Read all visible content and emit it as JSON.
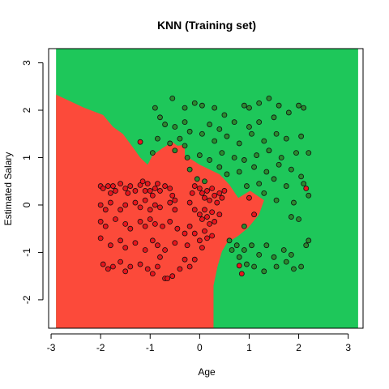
{
  "chart_data": {
    "type": "scatter",
    "title": "KNN (Training set)",
    "xlabel": "Age",
    "ylabel": "Estimated Salary",
    "xlim": [
      -3.05,
      3.3
    ],
    "ylim": [
      -2.6,
      3.3
    ],
    "x_ticks": [
      -3,
      -2,
      -1,
      0,
      1,
      2,
      3
    ],
    "y_ticks": [
      -2,
      -1,
      0,
      1,
      2,
      3
    ],
    "grid": false,
    "background_region": {
      "x_range": [
        -2.9,
        3.2
      ],
      "y_range": [
        -2.6,
        3.3
      ],
      "class_1_color": "#1ec75a",
      "class_0_color": "#fc4a3a",
      "class_0_region_polygon": [
        [
          -2.9,
          2.33
        ],
        [
          -2.35,
          2.06
        ],
        [
          -1.95,
          1.9
        ],
        [
          -1.75,
          1.65
        ],
        [
          -1.55,
          1.5
        ],
        [
          -1.35,
          1.22
        ],
        [
          -1.2,
          1.0
        ],
        [
          -1.05,
          0.85
        ],
        [
          -0.95,
          1.05
        ],
        [
          -0.75,
          1.2
        ],
        [
          -0.55,
          1.33
        ],
        [
          -0.45,
          1.25
        ],
        [
          -0.3,
          1.27
        ],
        [
          -0.3,
          1.05
        ],
        [
          -0.15,
          0.95
        ],
        [
          0.0,
          0.85
        ],
        [
          0.2,
          0.75
        ],
        [
          0.4,
          0.65
        ],
        [
          0.6,
          0.43
        ],
        [
          0.78,
          0.15
        ],
        [
          1.02,
          0.3
        ],
        [
          1.3,
          0.1
        ],
        [
          1.2,
          -0.2
        ],
        [
          0.98,
          -0.48
        ],
        [
          0.78,
          -0.65
        ],
        [
          0.55,
          -0.8
        ],
        [
          0.45,
          -0.98
        ],
        [
          0.36,
          -1.3
        ],
        [
          0.28,
          -1.7
        ],
        [
          0.28,
          -2.6
        ],
        [
          -2.9,
          -2.6
        ]
      ]
    },
    "series": [
      {
        "color": "#e8141d",
        "points": [
          [
            -1.2,
            1.33
          ],
          [
            -2.0,
            0.4
          ],
          [
            -1.95,
            0.35
          ],
          [
            -1.85,
            0.4
          ],
          [
            -1.8,
            0.25
          ],
          [
            -1.75,
            0.4
          ],
          [
            -1.7,
            0.3
          ],
          [
            -1.6,
            0.45
          ],
          [
            -1.5,
            0.35
          ],
          [
            -1.45,
            0.25
          ],
          [
            -1.4,
            0.4
          ],
          [
            -1.3,
            0.3
          ],
          [
            -1.2,
            0.42
          ],
          [
            -1.15,
            0.5
          ],
          [
            -1.1,
            0.3
          ],
          [
            -1.05,
            0.45
          ],
          [
            -1.0,
            0.3
          ],
          [
            -0.95,
            0.2
          ],
          [
            -0.9,
            0.35
          ],
          [
            -0.85,
            0.45
          ],
          [
            -0.8,
            0.3
          ],
          [
            -0.7,
            0.4
          ],
          [
            -0.6,
            0.35
          ],
          [
            -0.55,
            0.2
          ],
          [
            -0.5,
            0.1
          ],
          [
            -2.0,
            0.0
          ],
          [
            -1.9,
            -0.1
          ],
          [
            -1.8,
            0.05
          ],
          [
            -1.6,
            -0.1
          ],
          [
            -1.5,
            0.0
          ],
          [
            -1.3,
            0.05
          ],
          [
            -1.2,
            -0.05
          ],
          [
            -1.1,
            0.1
          ],
          [
            -1.0,
            -0.1
          ],
          [
            -0.9,
            0.0
          ],
          [
            -0.8,
            -0.05
          ],
          [
            -0.6,
            0.05
          ],
          [
            -0.5,
            -0.1
          ],
          [
            -2.0,
            -0.35
          ],
          [
            -1.9,
            -0.45
          ],
          [
            -1.7,
            -0.3
          ],
          [
            -1.5,
            -0.4
          ],
          [
            -1.4,
            -0.5
          ],
          [
            -1.2,
            -0.35
          ],
          [
            -1.1,
            -0.45
          ],
          [
            -1.0,
            -0.3
          ],
          [
            -0.9,
            -0.4
          ],
          [
            -0.75,
            -0.45
          ],
          [
            -0.6,
            -0.35
          ],
          [
            -0.45,
            -0.5
          ],
          [
            -2.0,
            -0.7
          ],
          [
            -1.8,
            -0.85
          ],
          [
            -1.6,
            -0.75
          ],
          [
            -1.5,
            -0.9
          ],
          [
            -1.3,
            -0.8
          ],
          [
            -1.1,
            -0.95
          ],
          [
            -0.95,
            -0.75
          ],
          [
            -0.85,
            -0.85
          ],
          [
            -0.7,
            -0.95
          ],
          [
            -0.5,
            -0.8
          ],
          [
            -1.95,
            -1.25
          ],
          [
            -1.85,
            -1.35
          ],
          [
            -1.75,
            -1.3
          ],
          [
            -1.6,
            -1.2
          ],
          [
            -1.5,
            -1.4
          ],
          [
            -1.4,
            -1.3
          ],
          [
            -1.2,
            -1.25
          ],
          [
            -1.05,
            -1.35
          ],
          [
            -0.95,
            -1.45
          ],
          [
            -0.85,
            -1.3
          ],
          [
            -0.8,
            -1.1
          ],
          [
            -0.7,
            -1.55
          ],
          [
            -0.65,
            -1.55
          ],
          [
            -0.55,
            -1.5
          ],
          [
            -0.4,
            -1.35
          ],
          [
            -0.3,
            -1.15
          ],
          [
            -0.2,
            -1.3
          ],
          [
            -0.1,
            -1.15
          ],
          [
            -0.1,
            0.4
          ],
          [
            0.0,
            0.35
          ],
          [
            0.05,
            0.25
          ],
          [
            0.1,
            0.15
          ],
          [
            0.15,
            0.3
          ],
          [
            0.2,
            0.1
          ],
          [
            0.25,
            0.35
          ],
          [
            0.3,
            0.2
          ],
          [
            0.35,
            0.05
          ],
          [
            0.4,
            0.25
          ],
          [
            0.45,
            0.15
          ],
          [
            0.5,
            0.3
          ],
          [
            -0.2,
            0.05
          ],
          [
            -0.1,
            -0.1
          ],
          [
            0.0,
            -0.2
          ],
          [
            0.05,
            -0.3
          ],
          [
            0.1,
            -0.1
          ],
          [
            0.15,
            -0.25
          ],
          [
            0.2,
            -0.4
          ],
          [
            0.25,
            -0.15
          ],
          [
            0.3,
            -0.35
          ],
          [
            0.4,
            -0.2
          ],
          [
            -0.2,
            -0.45
          ],
          [
            -0.1,
            -0.6
          ],
          [
            0.0,
            -0.75
          ],
          [
            0.1,
            -0.55
          ],
          [
            0.15,
            -0.7
          ],
          [
            0.25,
            -0.65
          ],
          [
            -0.3,
            -0.6
          ],
          [
            -0.25,
            -0.85
          ],
          [
            0.05,
            -0.9
          ],
          [
            -0.15,
            0.25
          ],
          [
            1.0,
            0.15
          ],
          [
            2.15,
            0.35
          ],
          [
            1.1,
            -0.2
          ],
          [
            0.85,
            -1.45
          ],
          [
            0.8,
            -1.28
          ],
          [
            1.4,
            1.15
          ]
        ]
      },
      {
        "color": "#2a8a2e",
        "points": [
          [
            -0.55,
            2.25
          ],
          [
            -0.3,
            2.05
          ],
          [
            0.05,
            2.1
          ],
          [
            -0.1,
            2.15
          ],
          [
            0.3,
            2.05
          ],
          [
            0.5,
            1.9
          ],
          [
            0.9,
            2.1
          ],
          [
            1.0,
            2.05
          ],
          [
            1.2,
            2.15
          ],
          [
            1.4,
            2.25
          ],
          [
            1.6,
            2.1
          ],
          [
            2.0,
            2.1
          ],
          [
            2.1,
            2.05
          ],
          [
            -0.9,
            2.05
          ],
          [
            -0.8,
            1.85
          ],
          [
            -0.7,
            1.7
          ],
          [
            -0.5,
            1.65
          ],
          [
            -0.3,
            1.75
          ],
          [
            0.2,
            1.7
          ],
          [
            0.4,
            1.6
          ],
          [
            0.7,
            1.75
          ],
          [
            1.0,
            1.65
          ],
          [
            1.2,
            1.75
          ],
          [
            1.5,
            1.85
          ],
          [
            1.8,
            1.95
          ],
          [
            -0.85,
            1.4
          ],
          [
            -0.6,
            1.3
          ],
          [
            -0.4,
            1.4
          ],
          [
            -0.2,
            1.55
          ],
          [
            0.05,
            1.5
          ],
          [
            0.3,
            1.35
          ],
          [
            0.55,
            1.45
          ],
          [
            0.8,
            1.3
          ],
          [
            1.05,
            1.5
          ],
          [
            1.3,
            1.35
          ],
          [
            1.55,
            1.5
          ],
          [
            1.75,
            1.4
          ],
          [
            2.05,
            1.45
          ],
          [
            -0.95,
            1.1
          ],
          [
            -0.5,
            1.15
          ],
          [
            -0.25,
            1.0
          ],
          [
            0.0,
            1.05
          ],
          [
            0.2,
            0.95
          ],
          [
            0.45,
            1.1
          ],
          [
            0.7,
            1.0
          ],
          [
            0.9,
            0.95
          ],
          [
            1.15,
            1.05
          ],
          [
            1.4,
            1.15
          ],
          [
            1.65,
            1.0
          ],
          [
            1.95,
            1.1
          ],
          [
            2.2,
            1.1
          ],
          [
            -0.2,
            0.75
          ],
          [
            0.4,
            0.8
          ],
          [
            0.55,
            0.65
          ],
          [
            0.8,
            0.7
          ],
          [
            1.1,
            0.8
          ],
          [
            1.35,
            0.7
          ],
          [
            1.6,
            0.85
          ],
          [
            1.85,
            0.75
          ],
          [
            2.05,
            0.6
          ],
          [
            0.95,
            0.4
          ],
          [
            1.2,
            0.45
          ],
          [
            1.5,
            0.55
          ],
          [
            1.75,
            0.4
          ],
          [
            2.1,
            0.45
          ],
          [
            1.3,
            0.25
          ],
          [
            1.55,
            0.1
          ],
          [
            1.9,
            0.05
          ],
          [
            2.2,
            0.2
          ],
          [
            1.85,
            -0.25
          ],
          [
            2.0,
            -0.3
          ],
          [
            2.2,
            -0.75
          ],
          [
            2.15,
            -0.85
          ],
          [
            0.9,
            -0.45
          ],
          [
            0.75,
            -0.85
          ],
          [
            0.9,
            -0.95
          ],
          [
            1.05,
            -0.85
          ],
          [
            1.2,
            -1.05
          ],
          [
            1.35,
            -0.85
          ],
          [
            1.5,
            -1.1
          ],
          [
            1.7,
            -0.95
          ],
          [
            1.85,
            -1.05
          ],
          [
            2.05,
            -1.3
          ],
          [
            0.8,
            -1.1
          ],
          [
            0.95,
            -1.25
          ],
          [
            1.1,
            -1.3
          ],
          [
            1.3,
            -1.4
          ],
          [
            1.55,
            -1.3
          ],
          [
            1.75,
            -1.2
          ],
          [
            1.9,
            -1.35
          ],
          [
            0.65,
            -0.95
          ],
          [
            0.6,
            -0.75
          ],
          [
            -0.05,
            0.55
          ],
          [
            0.1,
            0.5
          ],
          [
            -0.3,
            1.25
          ]
        ]
      }
    ]
  }
}
